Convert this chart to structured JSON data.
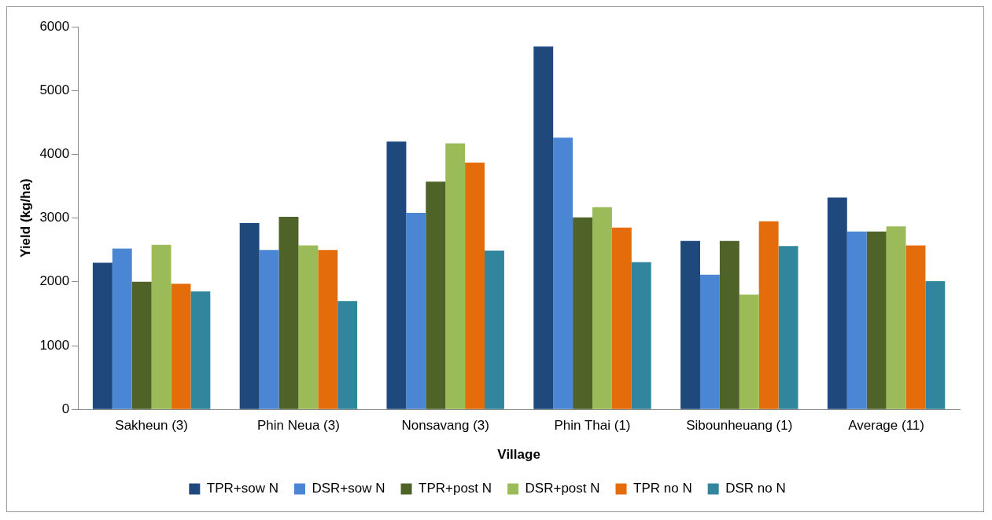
{
  "chart_data": {
    "type": "bar",
    "xlabel": "Village",
    "ylabel": "Yield (kg/ha)",
    "categories": [
      "Sakheun (3)",
      "Phin Neua (3)",
      "Nonsavang (3)",
      "Phin Thai (1)",
      "Sibounheuang (1)",
      "Average (11)"
    ],
    "series": [
      {
        "name": "TPR+sow N",
        "color": "#1f497d",
        "values": [
          2300,
          2920,
          4200,
          5690,
          2640,
          3320
        ]
      },
      {
        "name": "DSR+sow N",
        "color": "#4a86d4",
        "values": [
          2520,
          2500,
          3080,
          4260,
          2110,
          2790
        ]
      },
      {
        "name": "TPR+post N",
        "color": "#4f6228",
        "values": [
          2000,
          3020,
          3570,
          3010,
          2640,
          2790
        ]
      },
      {
        "name": "DSR+post N",
        "color": "#9bbb59",
        "values": [
          2580,
          2570,
          4170,
          3170,
          1800,
          2870
        ]
      },
      {
        "name": "TPR no N",
        "color": "#e46c0a",
        "values": [
          1970,
          2500,
          3870,
          2850,
          2950,
          2570
        ]
      },
      {
        "name": "DSR no N",
        "color": "#31859c",
        "values": [
          1850,
          1700,
          2490,
          2310,
          2560,
          2010
        ]
      }
    ],
    "ylim": [
      0,
      6000
    ],
    "yticks": [
      0,
      1000,
      2000,
      3000,
      4000,
      5000,
      6000
    ],
    "grid": false,
    "legend": "bottom"
  }
}
